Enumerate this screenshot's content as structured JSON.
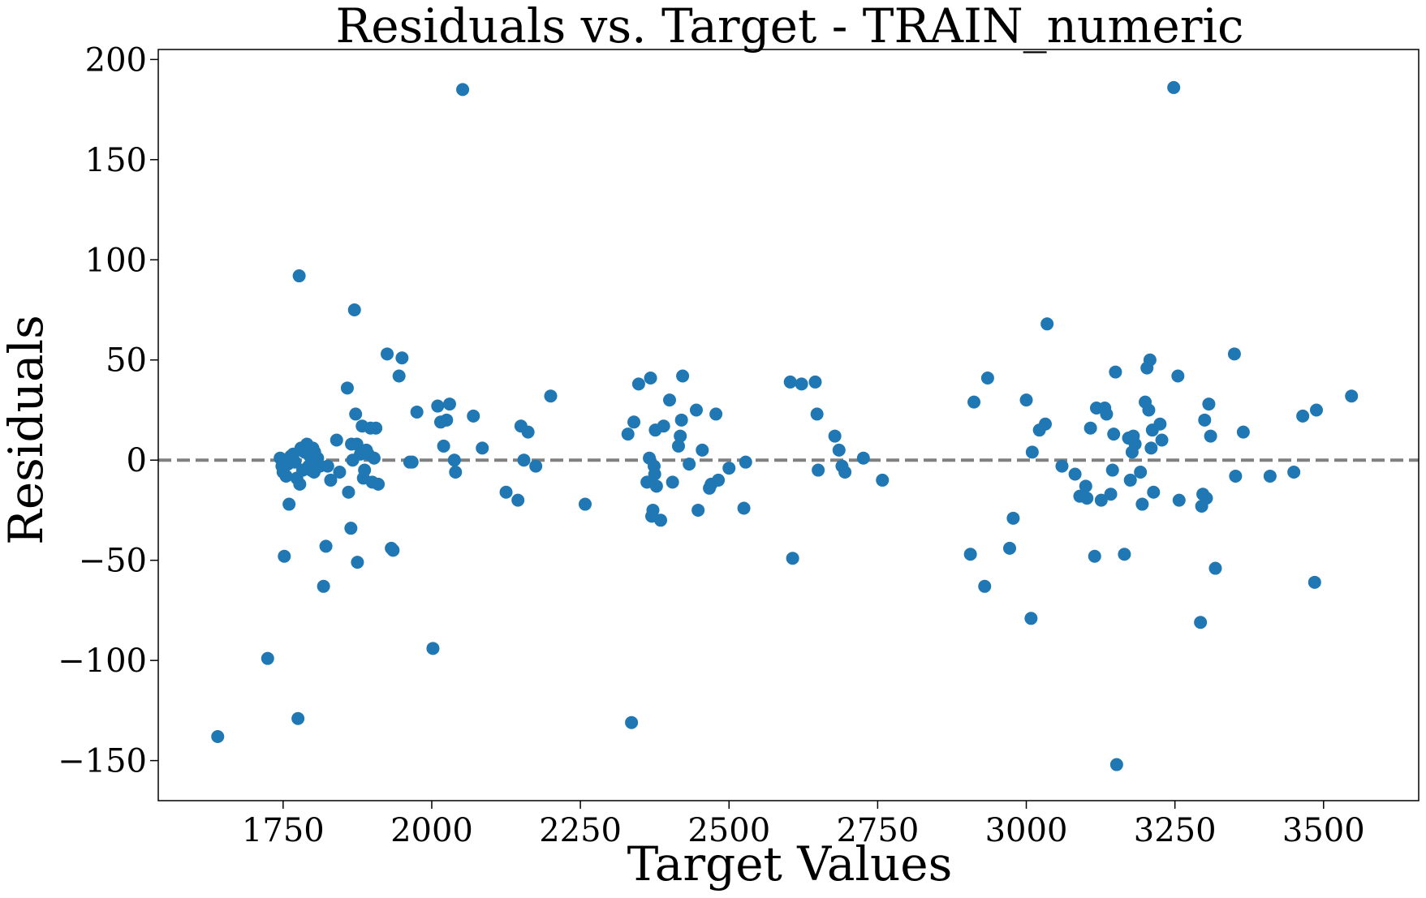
{
  "chart_data": {
    "type": "scatter",
    "title": "Residuals vs. Target - TRAIN_numeric",
    "xlabel": "Target Values",
    "ylabel": "Residuals",
    "xlim": [
      1540,
      3660
    ],
    "ylim": [
      -170,
      205
    ],
    "xticks": [
      1750,
      2000,
      2250,
      2500,
      2750,
      3000,
      3250,
      3500
    ],
    "yticks": [
      -150,
      -100,
      -50,
      0,
      50,
      100,
      150,
      200
    ],
    "ytick_labels": [
      "−150",
      "−100",
      "−50",
      "0",
      "50",
      "100",
      "150",
      "200"
    ],
    "reference_line": {
      "y": 0,
      "style": "dashed",
      "color": "#808080"
    },
    "grid": false,
    "marker_color": "#1f77b4",
    "points": [
      [
        1640,
        -138
      ],
      [
        1724,
        -99
      ],
      [
        1745,
        1
      ],
      [
        1748,
        -3
      ],
      [
        1750,
        -6
      ],
      [
        1752,
        -48
      ],
      [
        1755,
        -8
      ],
      [
        1758,
        -2
      ],
      [
        1760,
        -22
      ],
      [
        1763,
        2
      ],
      [
        1767,
        3
      ],
      [
        1770,
        -1
      ],
      [
        1773,
        -9
      ],
      [
        1775,
        -129
      ],
      [
        1777,
        92
      ],
      [
        1778,
        -12
      ],
      [
        1780,
        6
      ],
      [
        1783,
        -5
      ],
      [
        1786,
        4
      ],
      [
        1790,
        8
      ],
      [
        1793,
        -3
      ],
      [
        1795,
        2
      ],
      [
        1797,
        -5
      ],
      [
        1800,
        6
      ],
      [
        1802,
        -6
      ],
      [
        1803,
        4
      ],
      [
        1805,
        -4
      ],
      [
        1808,
        1
      ],
      [
        1812,
        -3
      ],
      [
        1818,
        -63
      ],
      [
        1822,
        -43
      ],
      [
        1825,
        -3
      ],
      [
        1830,
        -10
      ],
      [
        1840,
        10
      ],
      [
        1845,
        -6
      ],
      [
        1858,
        36
      ],
      [
        1860,
        -16
      ],
      [
        1864,
        -34
      ],
      [
        1865,
        8
      ],
      [
        1867,
        0
      ],
      [
        1870,
        75
      ],
      [
        1872,
        23
      ],
      [
        1874,
        8
      ],
      [
        1875,
        -51
      ],
      [
        1880,
        3
      ],
      [
        1883,
        17
      ],
      [
        1885,
        -9
      ],
      [
        1887,
        -5
      ],
      [
        1890,
        5
      ],
      [
        1893,
        3
      ],
      [
        1897,
        16
      ],
      [
        1900,
        -11
      ],
      [
        1903,
        1
      ],
      [
        1906,
        16
      ],
      [
        1910,
        -12
      ],
      [
        1925,
        53
      ],
      [
        1932,
        -44
      ],
      [
        1935,
        -45
      ],
      [
        1945,
        42
      ],
      [
        1950,
        51
      ],
      [
        1963,
        -1
      ],
      [
        1967,
        -1
      ],
      [
        1975,
        24
      ],
      [
        2002,
        -94
      ],
      [
        2010,
        27
      ],
      [
        2015,
        19
      ],
      [
        2020,
        7
      ],
      [
        2025,
        20
      ],
      [
        2030,
        28
      ],
      [
        2038,
        0
      ],
      [
        2040,
        -6
      ],
      [
        2052,
        185
      ],
      [
        2070,
        22
      ],
      [
        2085,
        6
      ],
      [
        2125,
        -16
      ],
      [
        2145,
        -20
      ],
      [
        2150,
        17
      ],
      [
        2155,
        0
      ],
      [
        2162,
        14
      ],
      [
        2175,
        -3
      ],
      [
        2200,
        32
      ],
      [
        2258,
        -22
      ],
      [
        2330,
        13
      ],
      [
        2336,
        -131
      ],
      [
        2340,
        19
      ],
      [
        2348,
        38
      ],
      [
        2362,
        -11
      ],
      [
        2366,
        1
      ],
      [
        2368,
        41
      ],
      [
        2370,
        -28
      ],
      [
        2372,
        -25
      ],
      [
        2374,
        -3
      ],
      [
        2375,
        -7
      ],
      [
        2376,
        15
      ],
      [
        2378,
        -13
      ],
      [
        2385,
        -30
      ],
      [
        2390,
        17
      ],
      [
        2400,
        30
      ],
      [
        2405,
        -11
      ],
      [
        2415,
        7
      ],
      [
        2418,
        12
      ],
      [
        2420,
        20
      ],
      [
        2422,
        42
      ],
      [
        2433,
        -2
      ],
      [
        2445,
        25
      ],
      [
        2448,
        -25
      ],
      [
        2455,
        5
      ],
      [
        2467,
        -14
      ],
      [
        2470,
        -12
      ],
      [
        2478,
        23
      ],
      [
        2482,
        -10
      ],
      [
        2500,
        -4
      ],
      [
        2525,
        -24
      ],
      [
        2528,
        -1
      ],
      [
        2603,
        39
      ],
      [
        2607,
        -49
      ],
      [
        2622,
        38
      ],
      [
        2645,
        39
      ],
      [
        2648,
        23
      ],
      [
        2650,
        -5
      ],
      [
        2678,
        12
      ],
      [
        2685,
        5
      ],
      [
        2690,
        -3
      ],
      [
        2695,
        -6
      ],
      [
        2726,
        1
      ],
      [
        2758,
        -10
      ],
      [
        2906,
        -47
      ],
      [
        2912,
        29
      ],
      [
        2930,
        -63
      ],
      [
        2935,
        41
      ],
      [
        2972,
        -44
      ],
      [
        2978,
        -29
      ],
      [
        3000,
        30
      ],
      [
        3008,
        -79
      ],
      [
        3010,
        4
      ],
      [
        3022,
        15
      ],
      [
        3032,
        18
      ],
      [
        3035,
        68
      ],
      [
        3060,
        -3
      ],
      [
        3082,
        -7
      ],
      [
        3090,
        -18
      ],
      [
        3100,
        -13
      ],
      [
        3102,
        -19
      ],
      [
        3108,
        16
      ],
      [
        3115,
        -48
      ],
      [
        3118,
        26
      ],
      [
        3126,
        -20
      ],
      [
        3132,
        26
      ],
      [
        3135,
        23
      ],
      [
        3142,
        -17
      ],
      [
        3145,
        -5
      ],
      [
        3147,
        13
      ],
      [
        3150,
        44
      ],
      [
        3152,
        -152
      ],
      [
        3165,
        -47
      ],
      [
        3172,
        11
      ],
      [
        3175,
        -10
      ],
      [
        3178,
        4
      ],
      [
        3180,
        12
      ],
      [
        3183,
        8
      ],
      [
        3192,
        -6
      ],
      [
        3195,
        -22
      ],
      [
        3200,
        29
      ],
      [
        3203,
        46
      ],
      [
        3206,
        25
      ],
      [
        3208,
        50
      ],
      [
        3210,
        6
      ],
      [
        3212,
        15
      ],
      [
        3214,
        -16
      ],
      [
        3225,
        18
      ],
      [
        3228,
        10
      ],
      [
        3248,
        186
      ],
      [
        3255,
        42
      ],
      [
        3257,
        -20
      ],
      [
        3293,
        -81
      ],
      [
        3295,
        -23
      ],
      [
        3297,
        -17
      ],
      [
        3300,
        20
      ],
      [
        3303,
        -19
      ],
      [
        3307,
        28
      ],
      [
        3310,
        12
      ],
      [
        3318,
        -54
      ],
      [
        3350,
        53
      ],
      [
        3352,
        -8
      ],
      [
        3365,
        14
      ],
      [
        3410,
        -8
      ],
      [
        3450,
        -6
      ],
      [
        3465,
        22
      ],
      [
        3485,
        -61
      ],
      [
        3488,
        25
      ],
      [
        3547,
        32
      ]
    ]
  }
}
